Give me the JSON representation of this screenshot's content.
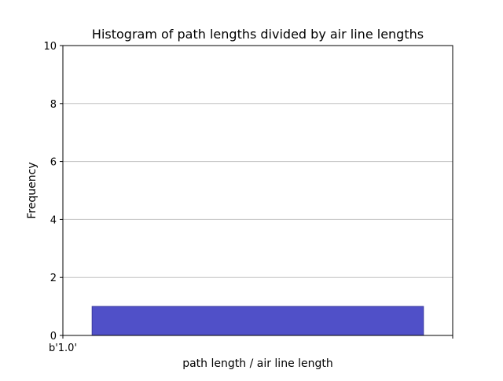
{
  "chart_data": {
    "type": "bar",
    "title": "Histogram of path lengths divided by air line lengths",
    "xlabel": "path length / air line length",
    "ylabel": "Frequency",
    "categories": [
      "b'1.0'"
    ],
    "values": [
      1
    ],
    "ylim": [
      0,
      10
    ],
    "yticks": [
      0,
      2,
      4,
      6,
      8,
      10
    ],
    "xticks": [
      "b'1.0'",
      ""
    ],
    "grid": "y",
    "legend": "none",
    "bar_color": "#5050c8",
    "bar_edge_color": "#3a3aa0",
    "grid_color": "#c0c0c0"
  }
}
